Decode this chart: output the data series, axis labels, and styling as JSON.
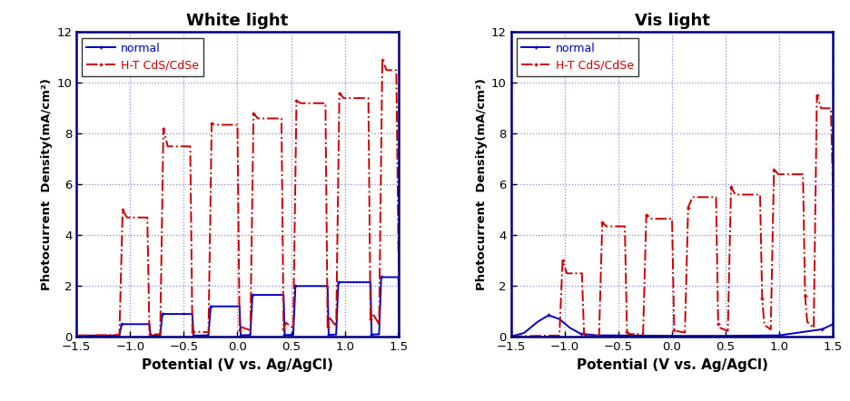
{
  "title_left": "White light",
  "title_right": "Vis light",
  "xlabel": "Potential (V vs. Ag/AgCl)",
  "ylabel": "Photocurrent  Density(mA/cm²)",
  "xlim": [
    -1.5,
    1.5
  ],
  "ylim": [
    0,
    12
  ],
  "yticks": [
    0,
    2,
    4,
    6,
    8,
    10,
    12
  ],
  "xticks": [
    -1.5,
    -1.0,
    -0.5,
    0.0,
    0.5,
    1.0,
    1.5
  ],
  "legend_normal": "normal",
  "legend_ht": "H-T CdS/CdSe",
  "normal_color": "#0000CC",
  "ht_color": "#CC0000",
  "grid_color": "#8888DD",
  "background_color": "#ffffff",
  "spine_color": "#000080"
}
